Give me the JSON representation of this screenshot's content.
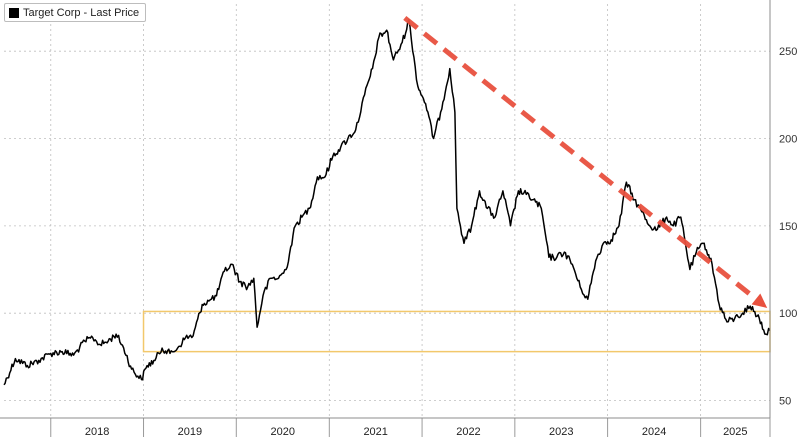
{
  "chart_data": {
    "type": "line",
    "legend": {
      "entries": [
        {
          "label": "Target Corp - Last Price",
          "color": "#000000"
        }
      ],
      "placement": "top-left"
    },
    "x_axis": {
      "tick_labels": [
        "2018",
        "2019",
        "2020",
        "2021",
        "2022",
        "2023",
        "2024",
        "2025"
      ],
      "range": [
        "2017-07-01",
        "2025-10-01"
      ]
    },
    "y_axis": {
      "tick_values": [
        50,
        100,
        150,
        200,
        250
      ],
      "range": [
        40,
        277
      ],
      "position": "right"
    },
    "grid": true,
    "series": [
      {
        "color": "#000000",
        "points": [
          [
            "2017-07-01",
            59
          ],
          [
            "2017-08-15",
            74
          ],
          [
            "2017-10-01",
            70
          ],
          [
            "2017-11-15",
            73
          ],
          [
            "2018-01-01",
            77
          ],
          [
            "2018-02-15",
            78
          ],
          [
            "2018-04-01",
            76
          ],
          [
            "2018-05-15",
            84
          ],
          [
            "2018-06-15",
            86
          ],
          [
            "2018-07-15",
            82
          ],
          [
            "2018-08-15",
            84
          ],
          [
            "2018-09-15",
            88
          ],
          [
            "2018-10-15",
            80
          ],
          [
            "2018-11-15",
            68
          ],
          [
            "2018-12-24",
            62
          ],
          [
            "2019-01-15",
            70
          ],
          [
            "2019-02-15",
            73
          ],
          [
            "2019-03-15",
            80
          ],
          [
            "2019-04-15",
            77
          ],
          [
            "2019-05-15",
            80
          ],
          [
            "2019-06-15",
            86
          ],
          [
            "2019-07-15",
            87
          ],
          [
            "2019-08-20",
            105
          ],
          [
            "2019-09-15",
            107
          ],
          [
            "2019-10-15",
            110
          ],
          [
            "2019-11-15",
            124
          ],
          [
            "2019-12-15",
            128
          ],
          [
            "2020-01-15",
            118
          ],
          [
            "2020-02-15",
            115
          ],
          [
            "2020-03-10",
            120
          ],
          [
            "2020-03-23",
            92
          ],
          [
            "2020-04-15",
            110
          ],
          [
            "2020-05-15",
            120
          ],
          [
            "2020-06-15",
            120
          ],
          [
            "2020-07-15",
            125
          ],
          [
            "2020-08-20",
            150
          ],
          [
            "2020-09-15",
            155
          ],
          [
            "2020-10-15",
            160
          ],
          [
            "2020-11-15",
            178
          ],
          [
            "2020-12-15",
            178
          ],
          [
            "2021-01-15",
            190
          ],
          [
            "2021-02-15",
            195
          ],
          [
            "2021-03-15",
            200
          ],
          [
            "2021-04-15",
            205
          ],
          [
            "2021-05-20",
            225
          ],
          [
            "2021-06-20",
            240
          ],
          [
            "2021-07-15",
            258
          ],
          [
            "2021-08-15",
            262
          ],
          [
            "2021-09-10",
            245
          ],
          [
            "2021-10-15",
            255
          ],
          [
            "2021-11-10",
            268
          ],
          [
            "2021-12-15",
            230
          ],
          [
            "2022-01-15",
            220
          ],
          [
            "2022-02-15",
            200
          ],
          [
            "2022-03-15",
            215
          ],
          [
            "2022-04-20",
            240
          ],
          [
            "2022-05-10",
            215
          ],
          [
            "2022-05-18",
            160
          ],
          [
            "2022-06-15",
            140
          ],
          [
            "2022-07-15",
            150
          ],
          [
            "2022-08-15",
            170
          ],
          [
            "2022-09-15",
            160
          ],
          [
            "2022-10-15",
            155
          ],
          [
            "2022-11-15",
            170
          ],
          [
            "2022-12-15",
            150
          ],
          [
            "2023-01-15",
            170
          ],
          [
            "2023-02-15",
            168
          ],
          [
            "2023-03-15",
            165
          ],
          [
            "2023-04-15",
            160
          ],
          [
            "2023-05-15",
            132
          ],
          [
            "2023-06-15",
            132
          ],
          [
            "2023-07-15",
            135
          ],
          [
            "2023-08-15",
            128
          ],
          [
            "2023-09-15",
            115
          ],
          [
            "2023-10-15",
            108
          ],
          [
            "2023-11-15",
            130
          ],
          [
            "2023-12-15",
            140
          ],
          [
            "2024-01-15",
            142
          ],
          [
            "2024-02-15",
            150
          ],
          [
            "2024-03-15",
            175
          ],
          [
            "2024-04-15",
            165
          ],
          [
            "2024-05-15",
            158
          ],
          [
            "2024-06-15",
            150
          ],
          [
            "2024-07-15",
            148
          ],
          [
            "2024-08-20",
            155
          ],
          [
            "2024-09-15",
            150
          ],
          [
            "2024-10-15",
            155
          ],
          [
            "2024-11-20",
            125
          ],
          [
            "2024-12-15",
            135
          ],
          [
            "2025-01-15",
            140
          ],
          [
            "2025-02-15",
            128
          ],
          [
            "2025-03-15",
            105
          ],
          [
            "2025-04-15",
            95
          ],
          [
            "2025-05-15",
            97
          ],
          [
            "2025-06-15",
            100
          ],
          [
            "2025-07-15",
            104
          ],
          [
            "2025-08-20",
            97
          ],
          [
            "2025-09-15",
            88
          ],
          [
            "2025-10-01",
            90
          ]
        ]
      }
    ],
    "annotations": [
      {
        "type": "trend-arrow",
        "color": "#e8513f",
        "from": [
          "2021-10-25",
          269
        ],
        "to": [
          "2025-09-20",
          103
        ]
      },
      {
        "type": "highlight-band",
        "color": "#f2c86b",
        "from_x": "2019-01-01",
        "to_x": "2025-10-01",
        "y_range": [
          78,
          101
        ]
      }
    ]
  }
}
